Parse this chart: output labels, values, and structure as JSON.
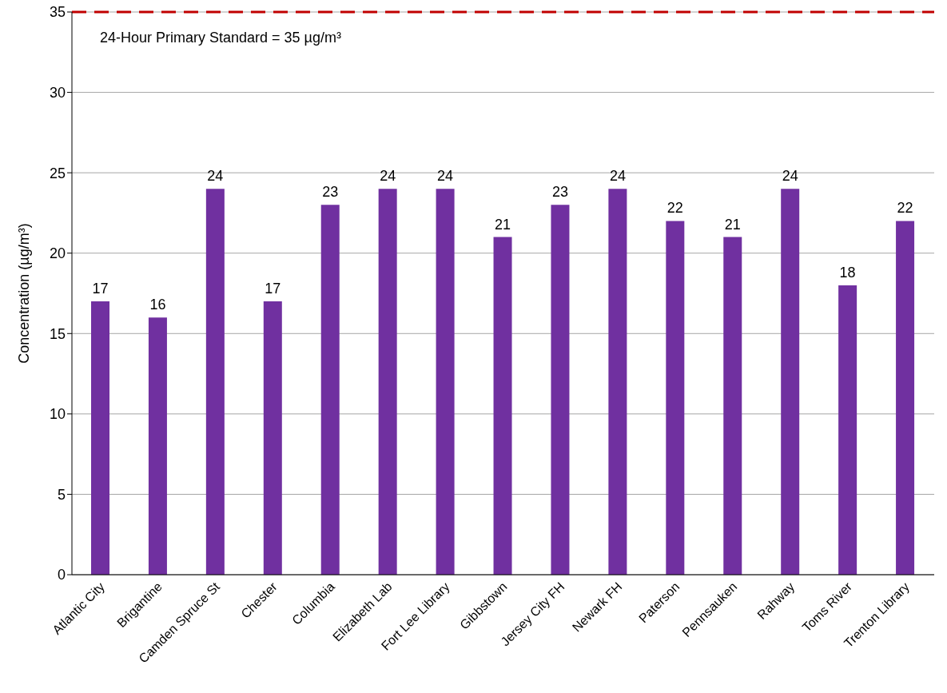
{
  "chart_data": {
    "type": "bar",
    "categories": [
      "Atlantic City",
      "Brigantine",
      "Camden Spruce St",
      "Chester",
      "Columbia",
      "Elizabeth Lab",
      "Fort Lee Library",
      "Gibbstown",
      "Jersey City FH",
      "Newark FH",
      "Paterson",
      "Pennsauken",
      "Rahway",
      "Toms River",
      "Trenton Library"
    ],
    "values": [
      17,
      16,
      24,
      17,
      23,
      24,
      24,
      21,
      23,
      24,
      22,
      21,
      24,
      18,
      22
    ],
    "color": "#7030a0",
    "ylabel": "Concentration (µg/m³)",
    "ylim": [
      0,
      35
    ],
    "yticks": [
      0,
      5,
      10,
      15,
      20,
      25,
      30,
      35
    ],
    "grid": "y",
    "data_labels": true,
    "ref_lines": [
      {
        "axis": "y",
        "value": 35,
        "label": "24-Hour Primary Standard = 35 µg/m³",
        "color": "#c00000",
        "line_style": "dashed"
      }
    ]
  }
}
